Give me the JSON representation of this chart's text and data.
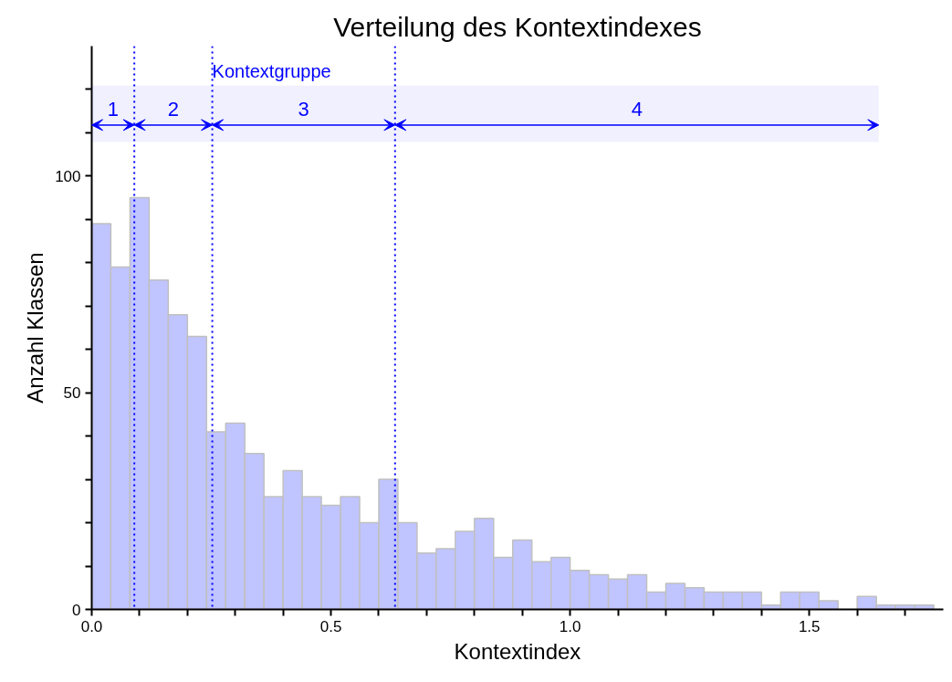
{
  "chart_data": {
    "type": "histogram",
    "title": "Verteilung des Kontextindexes",
    "xlabel": "Kontextindex",
    "ylabel": "Anzahl Klassen",
    "bins": [
      0,
      0.04,
      0.08,
      0.12,
      0.16,
      0.2,
      0.24,
      0.28,
      0.32,
      0.36,
      0.4,
      0.44,
      0.48,
      0.52,
      0.56,
      0.6,
      0.64,
      0.68,
      0.72,
      0.76,
      0.8,
      0.84,
      0.88,
      0.92,
      0.96,
      1.0,
      1.04,
      1.08,
      1.12,
      1.16,
      1.2,
      1.24,
      1.28,
      1.32,
      1.36,
      1.4,
      1.44,
      1.48,
      1.52,
      1.56,
      1.6,
      1.64,
      1.68,
      1.72,
      1.76
    ],
    "values": [
      89,
      79,
      95,
      76,
      68,
      63,
      41,
      43,
      36,
      26,
      32,
      26,
      24,
      26,
      20,
      30,
      20,
      13,
      14,
      18,
      21,
      12,
      16,
      11,
      12,
      9,
      8,
      7,
      8,
      4,
      6,
      5,
      4,
      4,
      4,
      1,
      4,
      4,
      2,
      0,
      3,
      1,
      1,
      1
    ],
    "color": "#c0c4ff",
    "xlim": [
      0,
      1.78
    ],
    "ylim": [
      0,
      130
    ],
    "xticks": [
      {
        "value": 0,
        "label": "0.0"
      },
      {
        "value": 0.1,
        "label": null
      },
      {
        "value": 0.2,
        "label": null
      },
      {
        "value": 0.3,
        "label": null
      },
      {
        "value": 0.4,
        "label": null
      },
      0.5,
      {
        "value": 0.6,
        "label": null
      },
      {
        "value": 0.7,
        "label": null
      },
      {
        "value": 0.8,
        "label": null
      },
      {
        "value": 0.9,
        "label": null
      },
      {
        "value": 1,
        "label": "1.0"
      },
      {
        "value": 1.1,
        "label": null
      },
      {
        "value": 1.2,
        "label": null
      },
      {
        "value": 1.3,
        "label": null
      },
      {
        "value": 1.4,
        "label": null
      },
      1.5,
      {
        "value": 1.6,
        "label": null
      },
      {
        "value": 1.7,
        "label": null
      }
    ],
    "yticks": [
      0,
      {
        "value": 10,
        "label": null
      },
      {
        "value": 20,
        "label": null
      },
      {
        "value": 30,
        "label": null
      },
      {
        "value": 40,
        "label": null
      },
      50,
      {
        "value": 60,
        "label": null
      },
      {
        "value": 70,
        "label": null
      },
      {
        "value": 80,
        "label": null
      },
      {
        "value": 90,
        "label": null
      },
      100,
      {
        "value": 110,
        "label": null
      },
      {
        "value": 120,
        "label": null
      }
    ],
    "grid": false,
    "ref_lines": [
      {
        "axis": "x",
        "value": 0.089,
        "label": null,
        "color": "#0000ff",
        "line_style": "dotted"
      },
      {
        "axis": "x",
        "value": 0.252,
        "label": null,
        "color": "#0000ff",
        "line_style": "dotted"
      },
      {
        "axis": "x",
        "value": 0.634,
        "label": null,
        "color": "#0000ff",
        "line_style": "dotted"
      }
    ],
    "bands": [
      {
        "axis": "x",
        "from": 0,
        "to": 0.089,
        "label": "1",
        "color": "#0000ff"
      },
      {
        "axis": "x",
        "from": 0.089,
        "to": 0.252,
        "label": "2",
        "color": "#0000ff"
      },
      {
        "axis": "x",
        "from": 0.252,
        "to": 0.634,
        "label": "3",
        "color": "#0000ff"
      },
      {
        "axis": "x",
        "from": 0.634,
        "to": 1.645,
        "label": "4",
        "color": "#0000ff"
      }
    ],
    "annotations": [
      "Kontextgruppe"
    ]
  }
}
